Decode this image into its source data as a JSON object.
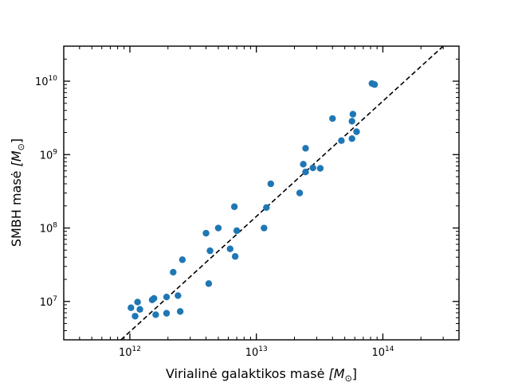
{
  "chart_data": {
    "type": "scatter",
    "xlabel": "Virialinė galaktikos masė",
    "xlabel_unit": "[M",
    "ylabel": "SMBH masė",
    "ylabel_unit": "[M",
    "unit_subscript": "⊙",
    "unit_close": "]",
    "xscale": "log",
    "yscale": "log",
    "xlim": [
      300000000000.0,
      400000000000000.0
    ],
    "ylim": [
      3000000.0,
      30000000000.0
    ],
    "x_ticks": [
      {
        "base": "10",
        "exp": "12",
        "value": 1000000000000.0
      },
      {
        "base": "10",
        "exp": "13",
        "value": 10000000000000.0
      },
      {
        "base": "10",
        "exp": "14",
        "value": 100000000000000.0
      }
    ],
    "y_ticks": [
      {
        "base": "10",
        "exp": "7",
        "value": 10000000.0
      },
      {
        "base": "10",
        "exp": "8",
        "value": 100000000.0
      },
      {
        "base": "10",
        "exp": "9",
        "value": 1000000000.0
      },
      {
        "base": "10",
        "exp": "10",
        "value": 10000000000.0
      }
    ],
    "grid": false,
    "legend": "none",
    "marker_color": "#1f77b4",
    "fit_line": {
      "style": "dashed",
      "color": "#000000",
      "points": [
        [
          850000000000.0,
          3000000.0
        ],
        [
          300000000000000.0,
          30000000000.0
        ]
      ]
    },
    "points": [
      [
        1020000000000.0,
        8200000.0
      ],
      [
        1100000000000.0,
        6300000.0
      ],
      [
        1150000000000.0,
        9800000.0
      ],
      [
        1200000000000.0,
        7800000.0
      ],
      [
        1500000000000.0,
        10500000.0
      ],
      [
        1550000000000.0,
        11000000.0
      ],
      [
        1600000000000.0,
        6600000.0
      ],
      [
        1950000000000.0,
        11500000.0
      ],
      [
        1950000000000.0,
        6900000.0
      ],
      [
        2200000000000.0,
        25000000.0
      ],
      [
        2400000000000.0,
        12000000.0
      ],
      [
        2500000000000.0,
        7300000.0
      ],
      [
        2600000000000.0,
        37000000.0
      ],
      [
        4000000000000.0,
        85000000.0
      ],
      [
        4200000000000.0,
        17500000.0
      ],
      [
        4300000000000.0,
        49000000.0
      ],
      [
        5000000000000.0,
        100000000.0
      ],
      [
        6200000000000.0,
        52000000.0
      ],
      [
        6700000000000.0,
        195000000.0
      ],
      [
        6800000000000.0,
        41000000.0
      ],
      [
        7000000000000.0,
        92000000.0
      ],
      [
        11500000000000.0,
        100000000.0
      ],
      [
        12000000000000.0,
        190000000.0
      ],
      [
        13000000000000.0,
        400000000.0
      ],
      [
        22000000000000.0,
        300000000.0
      ],
      [
        23500000000000.0,
        740000000.0
      ],
      [
        24500000000000.0,
        580000000.0
      ],
      [
        24500000000000.0,
        1220000000.0
      ],
      [
        28000000000000.0,
        660000000.0
      ],
      [
        32000000000000.0,
        650000000.0
      ],
      [
        40000000000000.0,
        3100000000.0
      ],
      [
        47000000000000.0,
        1550000000.0
      ],
      [
        57000000000000.0,
        1650000000.0
      ],
      [
        57000000000000.0,
        2850000000.0
      ],
      [
        58000000000000.0,
        3550000000.0
      ],
      [
        62000000000000.0,
        2050000000.0
      ],
      [
        82000000000000.0,
        9300000000.0
      ],
      [
        86000000000000.0,
        9000000000.0
      ]
    ]
  }
}
